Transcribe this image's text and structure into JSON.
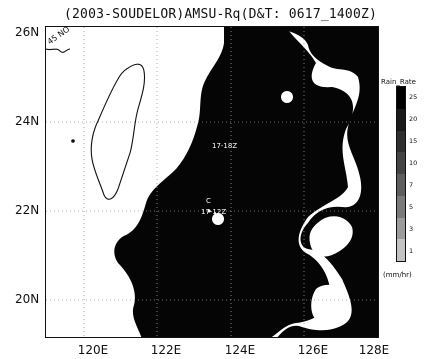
{
  "title": "(2003-SOUDELOR)AMSU-Rq(D&T: 0617_1400Z)",
  "map": {
    "lat_labels": [
      "26N",
      "24N",
      "22N",
      "20N"
    ],
    "lon_labels": [
      "120E",
      "122E",
      "124E",
      "126E",
      "128E"
    ],
    "lon_range": [
      119,
      128
    ],
    "lat_range": [
      19,
      26
    ],
    "grid": "dotted",
    "land_label": "45 NO",
    "track_annotations": [
      "17-18Z",
      "17-12Z"
    ],
    "storm_center_symbol": "C"
  },
  "legend": {
    "title": "Rain_Rate",
    "ticks": [
      "25",
      "20",
      "15",
      "10",
      "7",
      "5",
      "3",
      "1"
    ],
    "units": "(mm/hr)",
    "colors": [
      "#000000",
      "#1a1a1a",
      "#2e2e2e",
      "#444444",
      "#5e5e5e",
      "#7a7a7a",
      "#9b9b9b",
      "#c2c2c2"
    ]
  }
}
